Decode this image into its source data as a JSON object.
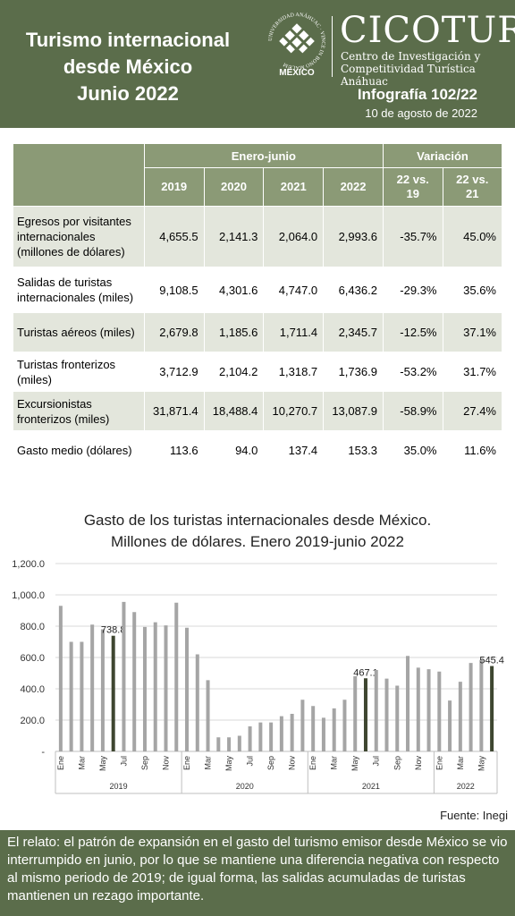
{
  "header": {
    "title_lines": [
      "Turismo internacional",
      "desde México",
      "Junio 2022"
    ],
    "logo_ring_text": "UNIVERSIDAD ANÁHUAC · VINCE IN BONO MALUM",
    "logo_city": "MÉXICO",
    "brand": "CICOTUR",
    "brand_sub1": "Centro de Investigación y",
    "brand_sub2": "Competitividad Turística Anáhuac",
    "infographic": "Infografía 102/22",
    "date": "10 de agosto de 2022"
  },
  "table": {
    "group_headers": {
      "period": "Enero-junio",
      "variation": "Variación"
    },
    "year_headers": [
      "2019",
      "2020",
      "2021",
      "2022"
    ],
    "var_headers": [
      [
        "22 vs.",
        "19"
      ],
      [
        "22 vs.",
        "21"
      ]
    ],
    "rows": [
      {
        "label": "Egresos por visitantes internacionales (millones de dólares)",
        "values": [
          "4,655.5",
          "2,141.3",
          "2,064.0",
          "2,993.6",
          "-35.7%",
          "45.0%"
        ]
      },
      {
        "label": "Salidas de turistas internacionales (miles)",
        "values": [
          "9,108.5",
          "4,301.6",
          "4,747.0",
          "6,436.2",
          "-29.3%",
          "35.6%"
        ]
      },
      {
        "label": "Turistas aéreos (miles)",
        "values": [
          "2,679.8",
          "1,185.6",
          "1,711.4",
          "2,345.7",
          "-12.5%",
          "37.1%"
        ]
      },
      {
        "label": "Turistas fronterizos (miles)",
        "values": [
          "3,712.9",
          "2,104.2",
          "1,318.7",
          "1,736.9",
          "-53.2%",
          "31.7%"
        ]
      },
      {
        "label": "Excursionistas fronterizos (miles)",
        "values": [
          "31,871.4",
          "18,488.4",
          "10,270.7",
          "13,087.9",
          "-58.9%",
          "27.4%"
        ]
      },
      {
        "label": "Gasto medio (dólares)",
        "values": [
          "113.6",
          "94.0",
          "137.4",
          "153.3",
          "35.0%",
          "11.6%"
        ]
      }
    ]
  },
  "chart_title_lines": [
    "Gasto de los turistas internacionales desde México.",
    "Millones de dólares. Enero 2019-junio 2022"
  ],
  "chart_data": {
    "type": "bar",
    "title": "Gasto de los turistas internacionales desde México. Millones de dólares. Enero 2019-junio 2022",
    "xlabel": "",
    "ylabel": "",
    "ylim": [
      0,
      1200
    ],
    "yticks": [
      "-",
      "200.0",
      "400.0",
      "600.0",
      "800.0",
      "1,000.0",
      "1,200.0"
    ],
    "grid": true,
    "categories": [
      "Ene",
      "Feb",
      "Mar",
      "Abr",
      "May",
      "Jun",
      "Jul",
      "Ago",
      "Sep",
      "Oct",
      "Nov",
      "Dic",
      "Ene",
      "Feb",
      "Mar",
      "Abr",
      "May",
      "Jun",
      "Jul",
      "Ago",
      "Sep",
      "Oct",
      "Nov",
      "Dic",
      "Ene",
      "Feb",
      "Mar",
      "Abr",
      "May",
      "Jun",
      "Jul",
      "Ago",
      "Sep",
      "Oct",
      "Nov",
      "Dic",
      "Ene",
      "Feb",
      "Mar",
      "Abr",
      "May",
      "Jun"
    ],
    "tick_labels": [
      "Ene",
      "",
      "Mar",
      "",
      "May",
      "",
      "Jul",
      "",
      "Sep",
      "",
      "Nov",
      "",
      "Ene",
      "",
      "Mar",
      "",
      "May",
      "",
      "Jul",
      "",
      "Sep",
      "",
      "Nov",
      "",
      "Ene",
      "",
      "Mar",
      "",
      "May",
      "",
      "Jul",
      "",
      "Sep",
      "",
      "Nov",
      "",
      "Ene",
      "",
      "Mar",
      "",
      "May",
      ""
    ],
    "years": [
      "2019",
      "2020",
      "2021",
      "2022"
    ],
    "values": [
      930,
      700,
      700,
      810,
      780,
      738.8,
      955,
      890,
      795,
      825,
      805,
      950,
      790,
      620,
      455,
      90,
      90,
      100,
      160,
      185,
      185,
      225,
      240,
      330,
      290,
      215,
      275,
      330,
      480,
      467.1,
      520,
      465,
      420,
      610,
      535,
      525,
      510,
      325,
      445,
      565,
      585,
      545.4
    ],
    "highlight_indices": [
      5,
      29,
      41
    ],
    "data_labels": {
      "5": "738.8",
      "29": "467.1",
      "41": "545.4"
    },
    "colors": {
      "bar": "#a5a5a5",
      "highlight": "#3e4630"
    }
  },
  "source": "Fuente: Inegi",
  "footer_text": "El relato: el patrón de expansión en el gasto del turismo emisor desde México se vio interrumpido en junio, por lo que se mantiene una diferencia negativa con respecto al mismo periodo de 2019; de igual forma, las salidas acumuladas de turistas mantienen un rezago importante."
}
